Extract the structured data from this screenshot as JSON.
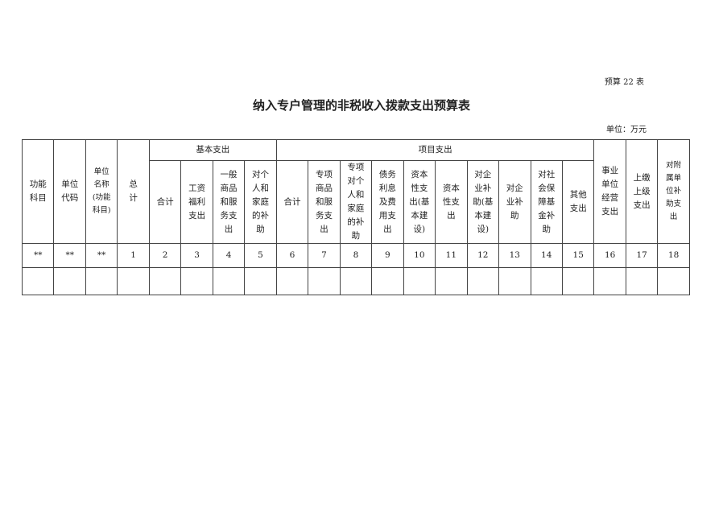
{
  "form_code": "预算 22 表",
  "title": "纳入专户管理的非税收入拨款支出预算表",
  "unit": "单位：万元",
  "groups": {
    "basic": "基本支出",
    "project": "项目支出"
  },
  "headers": {
    "func": "功能\n科目",
    "code": "单位\n代码",
    "name": "单位\n名称\n(功能\n科目)",
    "total": "总\n计",
    "b_sum": "合计",
    "b_wage": "工资\n福利\n支出",
    "b_goods": "一般\n商品\n和服\n务支\n出",
    "b_personal": "对个\n人和\n家庭\n的补\n助",
    "p_sum": "合计",
    "p_goods": "专项\n商品\n和服\n务支\n出",
    "p_personal": "专项\n对个\n人和\n家庭\n的补\n助",
    "p_debt": "债务\n利息\n及费\n用支\n出",
    "p_cap_build": "资本\n性支\n出(基\n本建\n设)",
    "p_cap": "资本\n性支\n出",
    "p_ent_build": "对企\n业补\n助(基\n本建\n设)",
    "p_ent": "对企\n业补\n助",
    "p_social": "对社\n会保\n障基\n金补\n助",
    "p_other": "其他\n支出",
    "inst": "事业\n单位\n经营\n支出",
    "upper": "上缴\n上级\n支出",
    "sub": "对附\n属单\n位补\n助支\n出"
  },
  "numbers": [
    "**",
    "**",
    "**",
    "1",
    "2",
    "3",
    "4",
    "5",
    "6",
    "7",
    "8",
    "9",
    "10",
    "11",
    "12",
    "13",
    "14",
    "15",
    "16",
    "17",
    "18"
  ]
}
